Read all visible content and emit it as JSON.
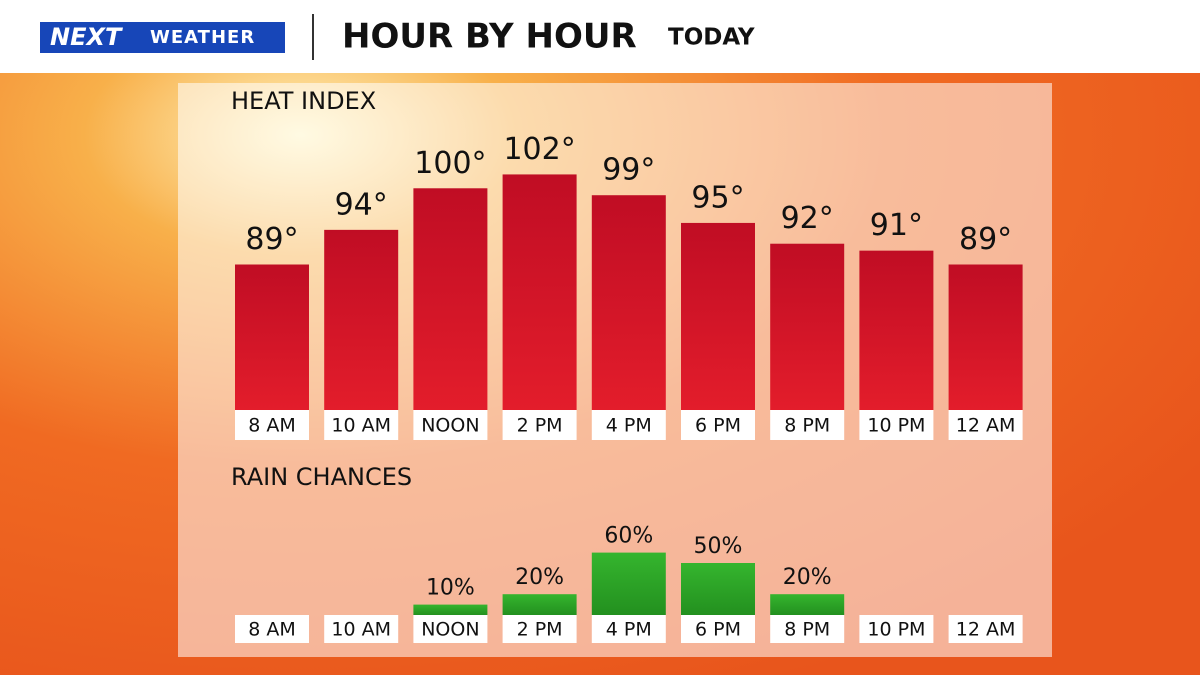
{
  "header": {
    "logo": "NEXT",
    "logo_sub": "WEATHER",
    "title": "HOUR BY HOUR",
    "subtitle": "TODAY"
  },
  "chart_data": [
    {
      "type": "bar",
      "title": "HEAT INDEX",
      "categories": [
        "8 AM",
        "10 AM",
        "NOON",
        "2 PM",
        "4 PM",
        "6 PM",
        "8 PM",
        "10 PM",
        "12 AM"
      ],
      "values": [
        89,
        94,
        100,
        102,
        99,
        95,
        92,
        91,
        89
      ],
      "value_labels": [
        "89°",
        "94°",
        "100°",
        "102°",
        "99°",
        "95°",
        "92°",
        "91°",
        "89°"
      ],
      "color": "#c8102e",
      "ylim": [
        68,
        110
      ]
    },
    {
      "type": "bar",
      "title": "RAIN CHANCES",
      "categories": [
        "8 AM",
        "10 AM",
        "NOON",
        "2 PM",
        "4 PM",
        "6 PM",
        "8 PM",
        "10 PM",
        "12 AM"
      ],
      "values": [
        0,
        0,
        10,
        20,
        60,
        50,
        20,
        0,
        0
      ],
      "value_labels": [
        null,
        null,
        "10%",
        "20%",
        "60%",
        "50%",
        "20%",
        null,
        null
      ],
      "color": "#2ea52a",
      "ylim": [
        0,
        100
      ]
    }
  ]
}
